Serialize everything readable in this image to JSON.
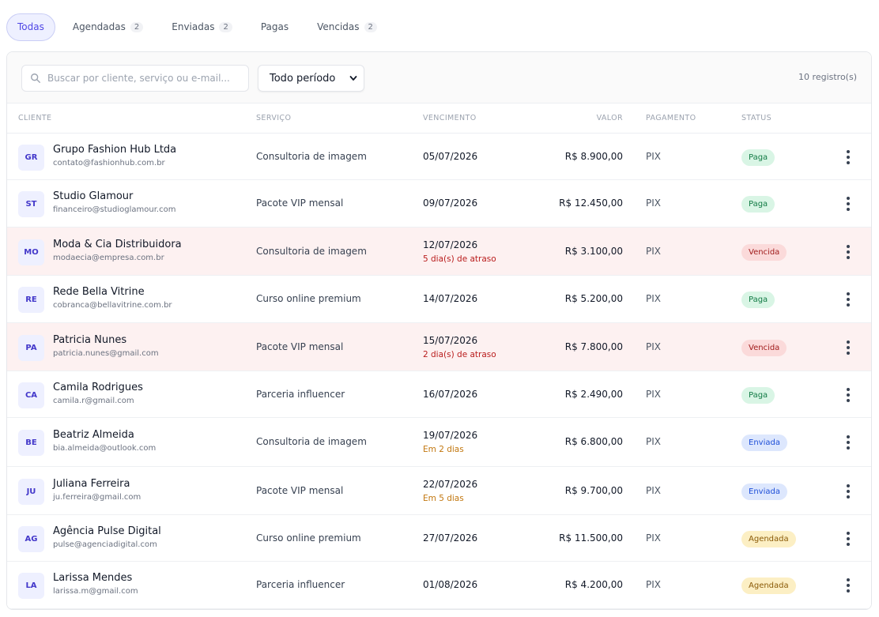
{
  "tabs": [
    {
      "label": "Todas",
      "count": null,
      "active": true
    },
    {
      "label": "Agendadas",
      "count": "2",
      "active": false
    },
    {
      "label": "Enviadas",
      "count": "2",
      "active": false
    },
    {
      "label": "Pagas",
      "count": null,
      "active": false
    },
    {
      "label": "Vencidas",
      "count": "2",
      "active": false
    }
  ],
  "toolbar": {
    "search_placeholder": "Buscar por cliente, serviço ou e-mail...",
    "search_value": "",
    "period_selected": "Todo período",
    "records_count": "10 registro(s)"
  },
  "table": {
    "headers": {
      "client": "Cliente",
      "service": "Serviço",
      "due": "Vencimento",
      "value": "Valor",
      "payment": "Pagamento",
      "status": "Status"
    },
    "rows": [
      {
        "initials": "GR",
        "name": "Grupo Fashion Hub Ltda",
        "email": "contato@fashionhub.com.br",
        "service": "Consultoria de imagem",
        "due": "05/07/2026",
        "due_note": "",
        "note_type": "",
        "value": "R$ 8.900,00",
        "payment": "PIX",
        "status": "Paga",
        "status_type": "paga",
        "overdue": false
      },
      {
        "initials": "ST",
        "name": "Studio Glamour",
        "email": "financeiro@studioglamour.com",
        "service": "Pacote VIP mensal",
        "due": "09/07/2026",
        "due_note": "",
        "note_type": "",
        "value": "R$ 12.450,00",
        "payment": "PIX",
        "status": "Paga",
        "status_type": "paga",
        "overdue": false
      },
      {
        "initials": "MO",
        "name": "Moda & Cia Distribuidora",
        "email": "modaecia@empresa.com.br",
        "service": "Consultoria de imagem",
        "due": "12/07/2026",
        "due_note": "5 dia(s) de atraso",
        "note_type": "late",
        "value": "R$ 3.100,00",
        "payment": "PIX",
        "status": "Vencida",
        "status_type": "vencida",
        "overdue": true
      },
      {
        "initials": "RE",
        "name": "Rede Bella Vitrine",
        "email": "cobranca@bellavitrine.com.br",
        "service": "Curso online premium",
        "due": "14/07/2026",
        "due_note": "",
        "note_type": "",
        "value": "R$ 5.200,00",
        "payment": "PIX",
        "status": "Paga",
        "status_type": "paga",
        "overdue": false
      },
      {
        "initials": "PA",
        "name": "Patricia Nunes",
        "email": "patricia.nunes@gmail.com",
        "service": "Pacote VIP mensal",
        "due": "15/07/2026",
        "due_note": "2 dia(s) de atraso",
        "note_type": "late",
        "value": "R$ 7.800,00",
        "payment": "PIX",
        "status": "Vencida",
        "status_type": "vencida",
        "overdue": true
      },
      {
        "initials": "CA",
        "name": "Camila Rodrigues",
        "email": "camila.r@gmail.com",
        "service": "Parceria influencer",
        "due": "16/07/2026",
        "due_note": "",
        "note_type": "",
        "value": "R$ 2.490,00",
        "payment": "PIX",
        "status": "Paga",
        "status_type": "paga",
        "overdue": false
      },
      {
        "initials": "BE",
        "name": "Beatriz Almeida",
        "email": "bia.almeida@outlook.com",
        "service": "Consultoria de imagem",
        "due": "19/07/2026",
        "due_note": "Em 2 dias",
        "note_type": "soon",
        "value": "R$ 6.800,00",
        "payment": "PIX",
        "status": "Enviada",
        "status_type": "enviada",
        "overdue": false
      },
      {
        "initials": "JU",
        "name": "Juliana Ferreira",
        "email": "ju.ferreira@gmail.com",
        "service": "Pacote VIP mensal",
        "due": "22/07/2026",
        "due_note": "Em 5 dias",
        "note_type": "soon",
        "value": "R$ 9.700,00",
        "payment": "PIX",
        "status": "Enviada",
        "status_type": "enviada",
        "overdue": false
      },
      {
        "initials": "AG",
        "name": "Agência Pulse Digital",
        "email": "pulse@agenciadigital.com",
        "service": "Curso online premium",
        "due": "27/07/2026",
        "due_note": "",
        "note_type": "",
        "value": "R$ 11.500,00",
        "payment": "PIX",
        "status": "Agendada",
        "status_type": "agendada",
        "overdue": false
      },
      {
        "initials": "LA",
        "name": "Larissa Mendes",
        "email": "larissa.m@gmail.com",
        "service": "Parceria influencer",
        "due": "01/08/2026",
        "due_note": "",
        "note_type": "",
        "value": "R$ 4.200,00",
        "payment": "PIX",
        "status": "Agendada",
        "status_type": "agendada",
        "overdue": false
      }
    ]
  },
  "icons": {
    "search": "search-icon",
    "period_dropdown": "chevron-down-icon",
    "row_menu": "more-vertical-icon"
  },
  "colors": {
    "accent": "#4f46e5",
    "overdue_row": "#fdf1f1",
    "paga": "#d9f5e5",
    "vencida": "#fbdada",
    "enviada": "#dde7fd",
    "agendada": "#fcefc4"
  }
}
